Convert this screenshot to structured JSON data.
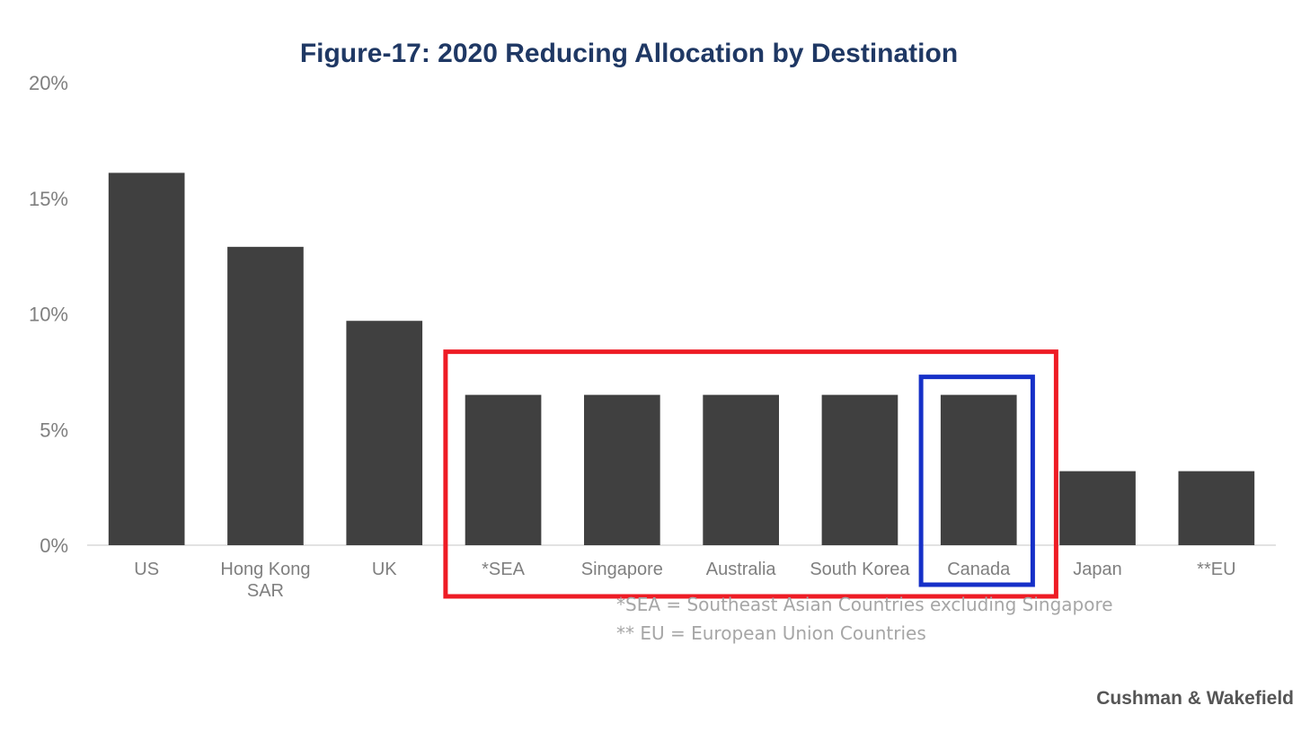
{
  "chart_data": {
    "type": "bar",
    "title": "Figure-17: 2020 Reducing Allocation by Destination",
    "xlabel": "",
    "ylabel": "",
    "ylim": [
      0,
      20
    ],
    "yticks": [
      "0%",
      "5%",
      "10%",
      "15%",
      "20%"
    ],
    "ytick_values": [
      0,
      5,
      10,
      15,
      20
    ],
    "categories": [
      "US",
      "Hong Kong\nSAR",
      "UK",
      "*SEA",
      "Singapore",
      "Australia",
      "South Korea",
      "Canada",
      "Japan",
      "**EU"
    ],
    "values": [
      16.1,
      12.9,
      9.7,
      6.5,
      6.5,
      6.5,
      6.5,
      6.5,
      3.2,
      3.2
    ],
    "grid": false,
    "legend": "none",
    "highlights": [
      {
        "categories": [
          "*SEA",
          "Singapore",
          "Australia",
          "South Korea",
          "Canada"
        ],
        "color": "#ee1c25"
      },
      {
        "categories": [
          "Canada"
        ],
        "color": "#1630c8"
      }
    ],
    "footnotes": [
      "*SEA = Southeast Asian Countries excluding Singapore",
      "** EU = European Union Countries"
    ],
    "source": "Cushman & Wakefield"
  },
  "colors": {
    "bar": "#404040",
    "title": "#1f3864",
    "axis_text": "#7f7f7f",
    "baseline": "#d9d9d9",
    "footnote": "#a6a6a6",
    "source": "#555555"
  }
}
